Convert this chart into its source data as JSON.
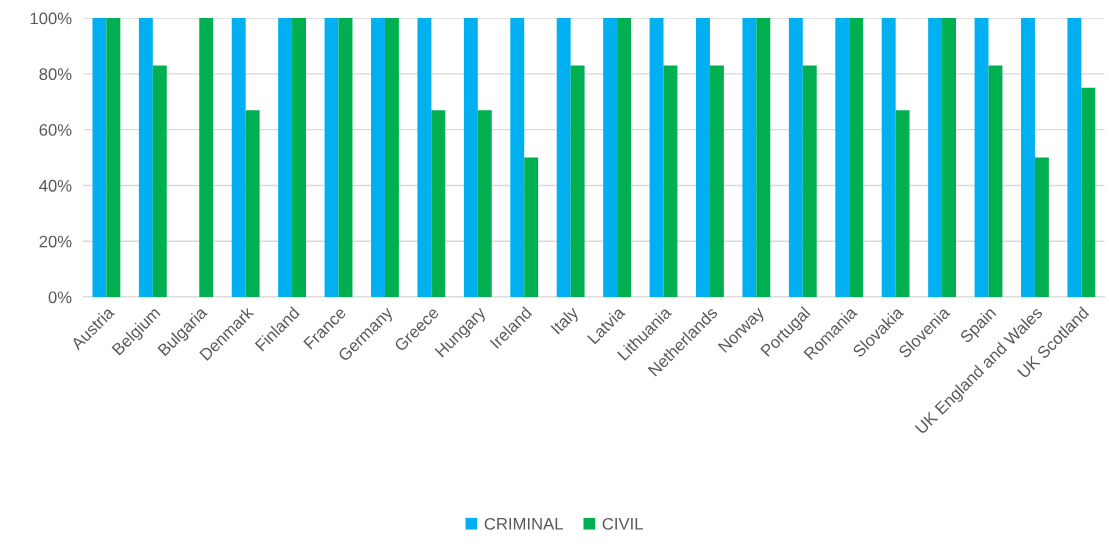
{
  "chart_data": {
    "type": "bar",
    "categories": [
      "Austria",
      "Belgium",
      "Bulgaria",
      "Denmark",
      "Finland",
      "France",
      "Germany",
      "Greece",
      "Hungary",
      "Ireland",
      "Italy",
      "Latvia",
      "Lithuania",
      "Netherlands",
      "Norway",
      "Portugal",
      "Romania",
      "Slovakia",
      "Slovenia",
      "Spain",
      "UK England and Wales",
      "UK Scotland"
    ],
    "series": [
      {
        "name": "CRIMINAL",
        "color": "#00b0f0",
        "values": [
          100,
          100,
          0,
          100,
          100,
          100,
          100,
          100,
          100,
          100,
          100,
          100,
          100,
          100,
          100,
          100,
          100,
          100,
          100,
          100,
          100,
          100
        ]
      },
      {
        "name": "CIVIL",
        "color": "#00b050",
        "values": [
          100,
          83,
          100,
          67,
          100,
          100,
          100,
          67,
          67,
          50,
          83,
          100,
          83,
          83,
          100,
          83,
          100,
          67,
          100,
          83,
          50,
          75
        ]
      }
    ],
    "ylim": [
      0,
      100
    ],
    "yticks": [
      {
        "value": 0,
        "label": "0%"
      },
      {
        "value": 20,
        "label": "20%"
      },
      {
        "value": 40,
        "label": "40%"
      },
      {
        "value": 60,
        "label": "60%"
      },
      {
        "value": 80,
        "label": "80%"
      },
      {
        "value": 100,
        "label": "100%"
      }
    ],
    "grid": "y",
    "legend": "bottom"
  }
}
